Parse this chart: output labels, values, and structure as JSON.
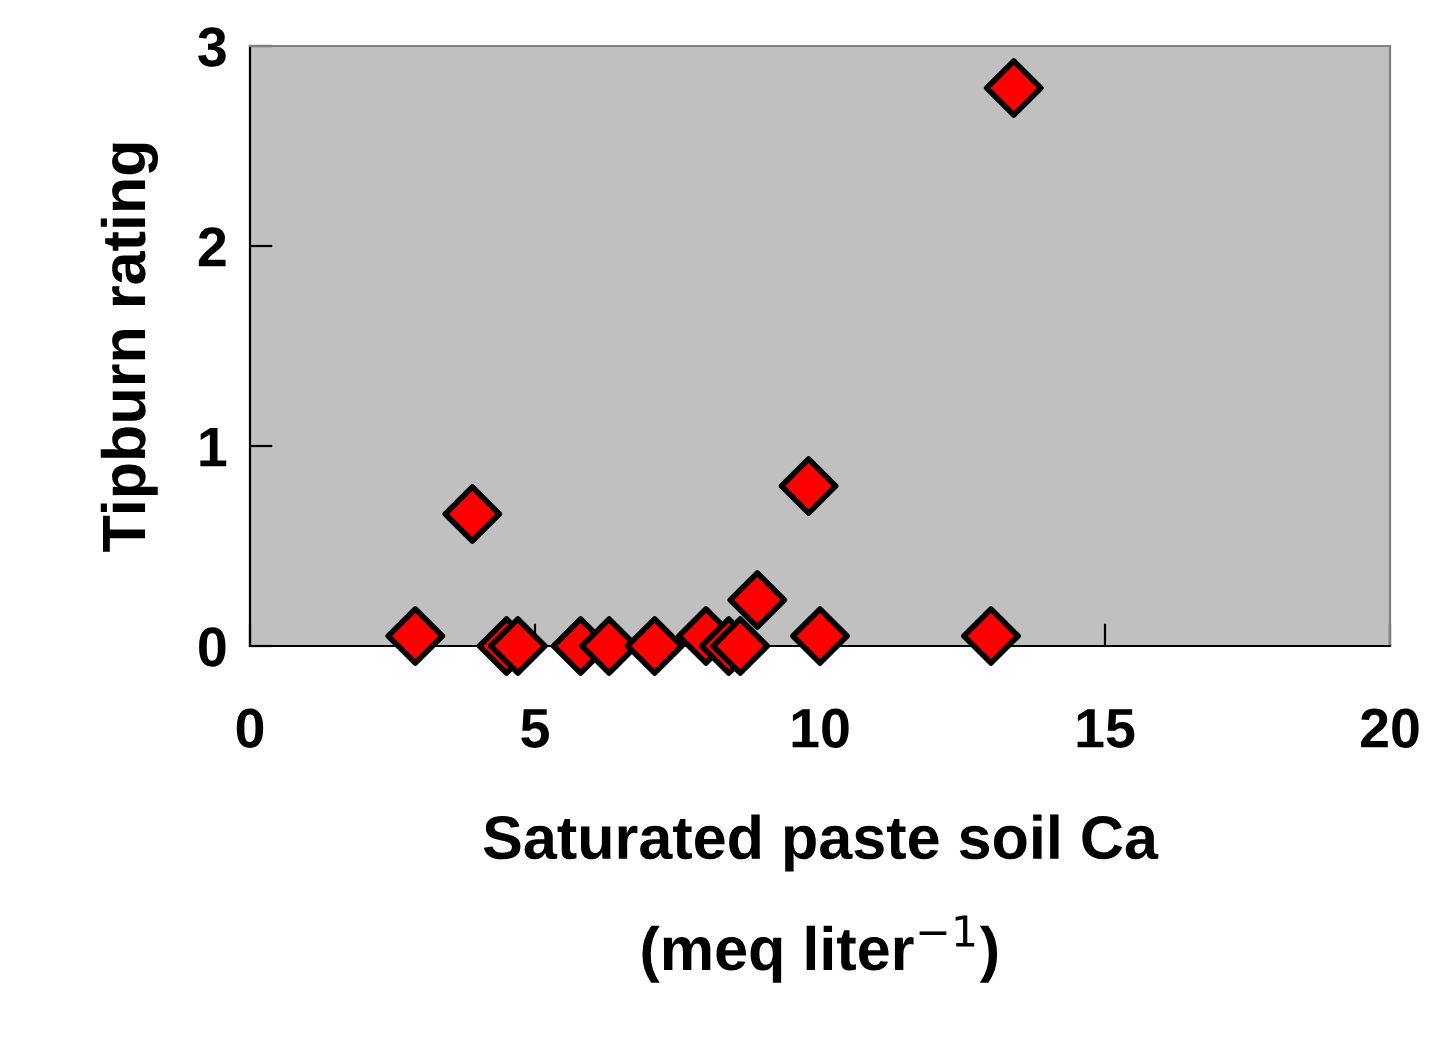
{
  "chart_data": {
    "type": "scatter",
    "xlabel": "Saturated paste soil Ca\n(meq liter$^{−1}$)",
    "ylabel": "Tipburn rating",
    "x": [
      2.9,
      3.9,
      4.5,
      4.7,
      5.8,
      6.3,
      7.1,
      8.0,
      8.4,
      8.6,
      8.9,
      9.8,
      10.0,
      13.0,
      13.4
    ],
    "series": [
      {
        "color": "#ff0000",
        "values": [
          0.05,
          0.66,
          0,
          0,
          0,
          0,
          0,
          0.05,
          0,
          0,
          0.23,
          0.8,
          0.05,
          0.05,
          2.79
        ]
      }
    ],
    "xlim": [
      0,
      20
    ],
    "ylim": [
      0,
      3
    ],
    "xticks": [
      0,
      5,
      10,
      15,
      20
    ],
    "yticks": [
      0,
      1,
      2,
      3
    ],
    "marker": "diamond",
    "grid": false,
    "legend": false
  }
}
